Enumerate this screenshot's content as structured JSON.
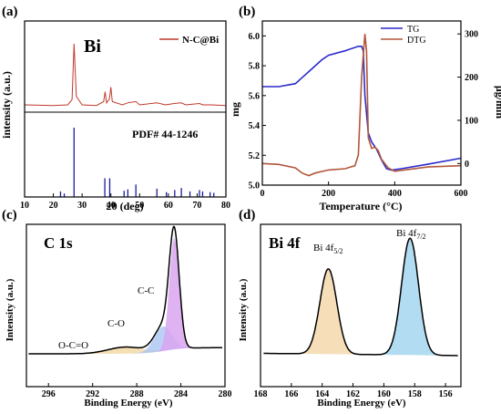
{
  "panels": {
    "a": {
      "tag": "(a)",
      "element_label": "Bi",
      "legend": "N-C@Bi",
      "pdf_label": "PDF# 44-1246",
      "xlabel": "2θ (deg)",
      "ylabel": "intensity (a.u.)",
      "xticks": [
        "10",
        "20",
        "30",
        "40",
        "50",
        "60",
        "70",
        "80"
      ]
    },
    "b": {
      "tag": "(b)",
      "xlabel": "Temperature (°C)",
      "ylabel_left": "mg",
      "ylabel_right": "μg/min",
      "xticks": [
        "0",
        "200",
        "400",
        "600"
      ],
      "yticks_left": [
        "5.0",
        "5.2",
        "5.4",
        "5.6",
        "5.8",
        "6.0"
      ],
      "yticks_right": [
        "0",
        "100",
        "200",
        "300"
      ],
      "legend": [
        "TG",
        "DTG"
      ]
    },
    "c": {
      "tag": "(c)",
      "element_label": "C 1s",
      "xlabel": "Binding Energy (eV)",
      "ylabel": "Intensity (a.u.)",
      "xticks": [
        "296",
        "292",
        "288",
        "284",
        "280"
      ],
      "peak_labels": [
        "C-C",
        "C-O",
        "O-C=O"
      ]
    },
    "d": {
      "tag": "(d)",
      "element_label": "Bi 4f",
      "xlabel": "Binding Energy (eV)",
      "ylabel": "Intensity (a.u.)",
      "xticks": [
        "168",
        "166",
        "164",
        "162",
        "160",
        "158",
        "156"
      ],
      "peak_labels": [
        {
          "main": "Bi 4f",
          "sub": "5/2"
        },
        {
          "main": "Bi 4f",
          "sub": "7/2"
        }
      ]
    }
  },
  "colors": {
    "xrd_line": "#c0392b",
    "xrd_ref": "#1a1a9e",
    "tg": "#2a2acc",
    "dtg": "#b0573a",
    "cc_fill": "#d9a6f0",
    "co_fill": "#a9c4f2",
    "oco_fill": "#f3d9a8",
    "bi52_fill": "#f5dab0",
    "bi72_fill": "#a8d8f0"
  },
  "chart_data": [
    {
      "panel": "a",
      "type": "line",
      "title": "",
      "xlabel": "2θ (deg)",
      "ylabel": "intensity (a.u.)",
      "xlim": [
        10,
        80
      ],
      "series": [
        {
          "name": "N-C@Bi",
          "x": [
            10,
            20,
            25,
            26.5,
            27.2,
            28,
            30,
            35,
            37.5,
            38,
            38.5,
            39.5,
            40,
            40.5,
            44,
            45.9,
            48.7,
            50,
            56,
            59,
            62,
            64.5,
            66,
            70.8,
            72,
            75,
            80
          ],
          "y": [
            0.07,
            0.06,
            0.07,
            0.15,
            1.0,
            0.2,
            0.07,
            0.06,
            0.12,
            0.27,
            0.1,
            0.16,
            0.34,
            0.12,
            0.07,
            0.1,
            0.12,
            0.07,
            0.1,
            0.07,
            0.09,
            0.1,
            0.07,
            0.09,
            0.07,
            0.07,
            0.06
          ]
        }
      ],
      "reference": {
        "name": "PDF# 44-1246",
        "positions": [
          22.5,
          23.8,
          27.2,
          37.9,
          39.6,
          44.6,
          45.9,
          48.7,
          56.0,
          59.3,
          62.2,
          64.5,
          67.5,
          70.8,
          71.9,
          74.5,
          75.8
        ],
        "intensities": [
          0.08,
          0.05,
          1.0,
          0.27,
          0.27,
          0.09,
          0.11,
          0.18,
          0.12,
          0.07,
          0.1,
          0.13,
          0.08,
          0.1,
          0.08,
          0.07,
          0.06
        ]
      }
    },
    {
      "panel": "b",
      "type": "line",
      "title": "",
      "xlabel": "Temperature (°C)",
      "ylabel": "mg",
      "y2label": "μg/min",
      "xlim": [
        0,
        600
      ],
      "ylim": [
        5.0,
        6.1
      ],
      "y2lim": [
        -50,
        330
      ],
      "series": [
        {
          "name": "TG",
          "axis": "left",
          "x": [
            0,
            50,
            100,
            120,
            150,
            180,
            200,
            250,
            290,
            300,
            305,
            310,
            320,
            330,
            345,
            360,
            375,
            390,
            420,
            500,
            600
          ],
          "y": [
            5.66,
            5.66,
            5.68,
            5.72,
            5.78,
            5.84,
            5.87,
            5.9,
            5.93,
            5.93,
            5.9,
            5.6,
            5.35,
            5.29,
            5.24,
            5.17,
            5.11,
            5.1,
            5.11,
            5.14,
            5.18
          ]
        },
        {
          "name": "DTG",
          "axis": "right",
          "x": [
            0,
            50,
            100,
            120,
            140,
            160,
            200,
            250,
            280,
            290,
            300,
            310,
            315,
            320,
            330,
            340,
            350,
            360,
            380,
            400,
            500,
            600
          ],
          "y": [
            0,
            -2,
            -10,
            -22,
            -28,
            -22,
            -15,
            -12,
            -5,
            20,
            200,
            300,
            260,
            60,
            35,
            38,
            30,
            10,
            -10,
            -18,
            -8,
            -5
          ]
        }
      ]
    },
    {
      "panel": "c",
      "type": "line",
      "title": "",
      "xlabel": "Binding Energy (eV)",
      "ylabel": "Intensity (a.u.)",
      "xlim": [
        298,
        280
      ],
      "series": [
        {
          "name": "C-C",
          "peak_eV": 284.6,
          "relative_height": 1.0
        },
        {
          "name": "C-O",
          "peak_eV": 285.6,
          "relative_height": 0.22
        },
        {
          "name": "O-C=O",
          "peak_eV": 289.0,
          "relative_height": 0.06
        }
      ]
    },
    {
      "panel": "d",
      "type": "line",
      "title": "",
      "xlabel": "Binding Energy (eV)",
      "ylabel": "Intensity (a.u.)",
      "xlim": [
        168,
        155
      ],
      "series": [
        {
          "name": "Bi 4f5/2",
          "peak_eV": 163.6,
          "relative_height": 0.73
        },
        {
          "name": "Bi 4f7/2",
          "peak_eV": 158.3,
          "relative_height": 1.0
        }
      ]
    }
  ]
}
